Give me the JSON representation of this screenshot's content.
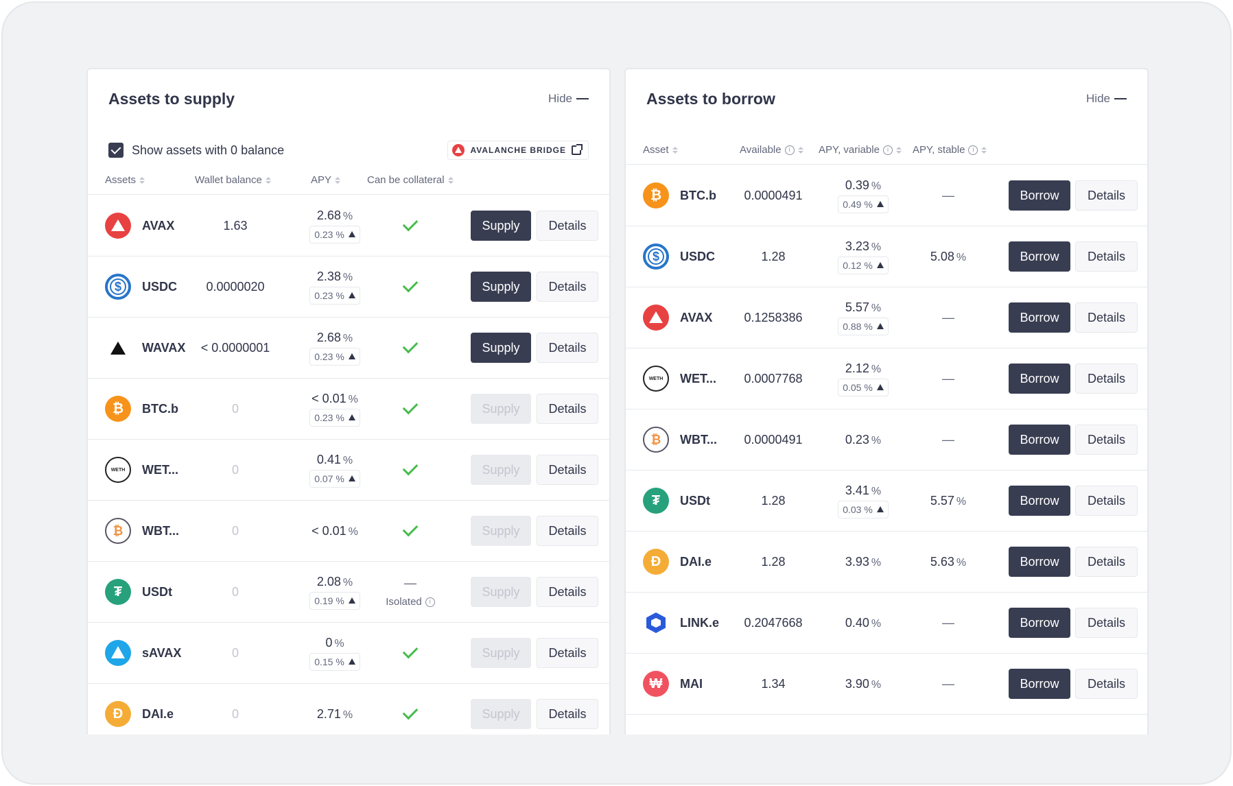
{
  "supply": {
    "title": "Assets to supply",
    "hide_label": "Hide",
    "show_zero_label": "Show assets with 0 balance",
    "bridge_label": "AVALANCHE BRIDGE",
    "columns": [
      "Assets",
      "Wallet balance",
      "APY",
      "Can be collateral"
    ],
    "supply_label": "Supply",
    "details_label": "Details",
    "isolated_label": "Isolated",
    "rows": [
      {
        "icon": "avax-icon",
        "symbol": "AVAX",
        "balance": "1.63",
        "apy": "2.68",
        "reward": "0.23 %",
        "collateral": "check",
        "enabled": true
      },
      {
        "icon": "usdc-icon",
        "symbol": "USDC",
        "balance": "0.0000020",
        "apy": "2.38",
        "reward": "0.23 %",
        "collateral": "check",
        "enabled": true
      },
      {
        "icon": "wavax-icon",
        "symbol": "WAVAX",
        "balance": "< 0.0000001",
        "apy": "2.68",
        "reward": "0.23 %",
        "collateral": "check",
        "enabled": true
      },
      {
        "icon": "btc-icon",
        "symbol": "BTC.b",
        "balance": "0",
        "apy": "< 0.01",
        "reward": "0.23 %",
        "collateral": "check",
        "enabled": false
      },
      {
        "icon": "weth-icon",
        "symbol": "WET...",
        "balance": "0",
        "apy": "0.41",
        "reward": "0.07 %",
        "collateral": "check",
        "enabled": false
      },
      {
        "icon": "wbtc-icon",
        "symbol": "WBT...",
        "balance": "0",
        "apy": "< 0.01",
        "reward": "",
        "collateral": "check",
        "enabled": false
      },
      {
        "icon": "usdt-icon",
        "symbol": "USDt",
        "balance": "0",
        "apy": "2.08",
        "reward": "0.19 %",
        "collateral": "isolated",
        "enabled": false
      },
      {
        "icon": "savax-icon",
        "symbol": "sAVAX",
        "balance": "0",
        "apy": "0",
        "reward": "0.15 %",
        "collateral": "check",
        "enabled": false
      },
      {
        "icon": "dai-icon",
        "symbol": "DAI.e",
        "balance": "0",
        "apy": "2.71",
        "reward": "",
        "collateral": "check",
        "enabled": false
      }
    ]
  },
  "borrow": {
    "title": "Assets to borrow",
    "hide_label": "Hide",
    "columns": [
      "Asset",
      "Available",
      "APY, variable",
      "APY, stable"
    ],
    "borrow_label": "Borrow",
    "details_label": "Details",
    "rows": [
      {
        "icon": "btc-icon",
        "symbol": "BTC.b",
        "available": "0.0000491",
        "apy_var": "0.39",
        "reward": "0.49 %",
        "apy_stable": "—"
      },
      {
        "icon": "usdc-icon",
        "symbol": "USDC",
        "available": "1.28",
        "apy_var": "3.23",
        "reward": "0.12 %",
        "apy_stable": "5.08"
      },
      {
        "icon": "avax-icon",
        "symbol": "AVAX",
        "available": "0.1258386",
        "apy_var": "5.57",
        "reward": "0.88 %",
        "apy_stable": "—"
      },
      {
        "icon": "weth-icon",
        "symbol": "WET...",
        "available": "0.0007768",
        "apy_var": "2.12",
        "reward": "0.05 %",
        "apy_stable": "—"
      },
      {
        "icon": "wbtc-icon",
        "symbol": "WBT...",
        "available": "0.0000491",
        "apy_var": "0.23",
        "reward": "",
        "apy_stable": "—"
      },
      {
        "icon": "usdt-icon",
        "symbol": "USDt",
        "available": "1.28",
        "apy_var": "3.41",
        "reward": "0.03 %",
        "apy_stable": "5.57"
      },
      {
        "icon": "dai-icon",
        "symbol": "DAI.e",
        "available": "1.28",
        "apy_var": "3.93",
        "reward": "",
        "apy_stable": "5.63"
      },
      {
        "icon": "link-icon",
        "symbol": "LINK.e",
        "available": "0.2047668",
        "apy_var": "0.40",
        "reward": "",
        "apy_stable": "—"
      },
      {
        "icon": "mai-icon",
        "symbol": "MAI",
        "available": "1.34",
        "apy_var": "3.90",
        "reward": "",
        "apy_stable": "—"
      }
    ]
  },
  "colors": {
    "accent_dark": "#383d51",
    "check_green": "#46bc4b",
    "avax_red": "#e84142"
  }
}
